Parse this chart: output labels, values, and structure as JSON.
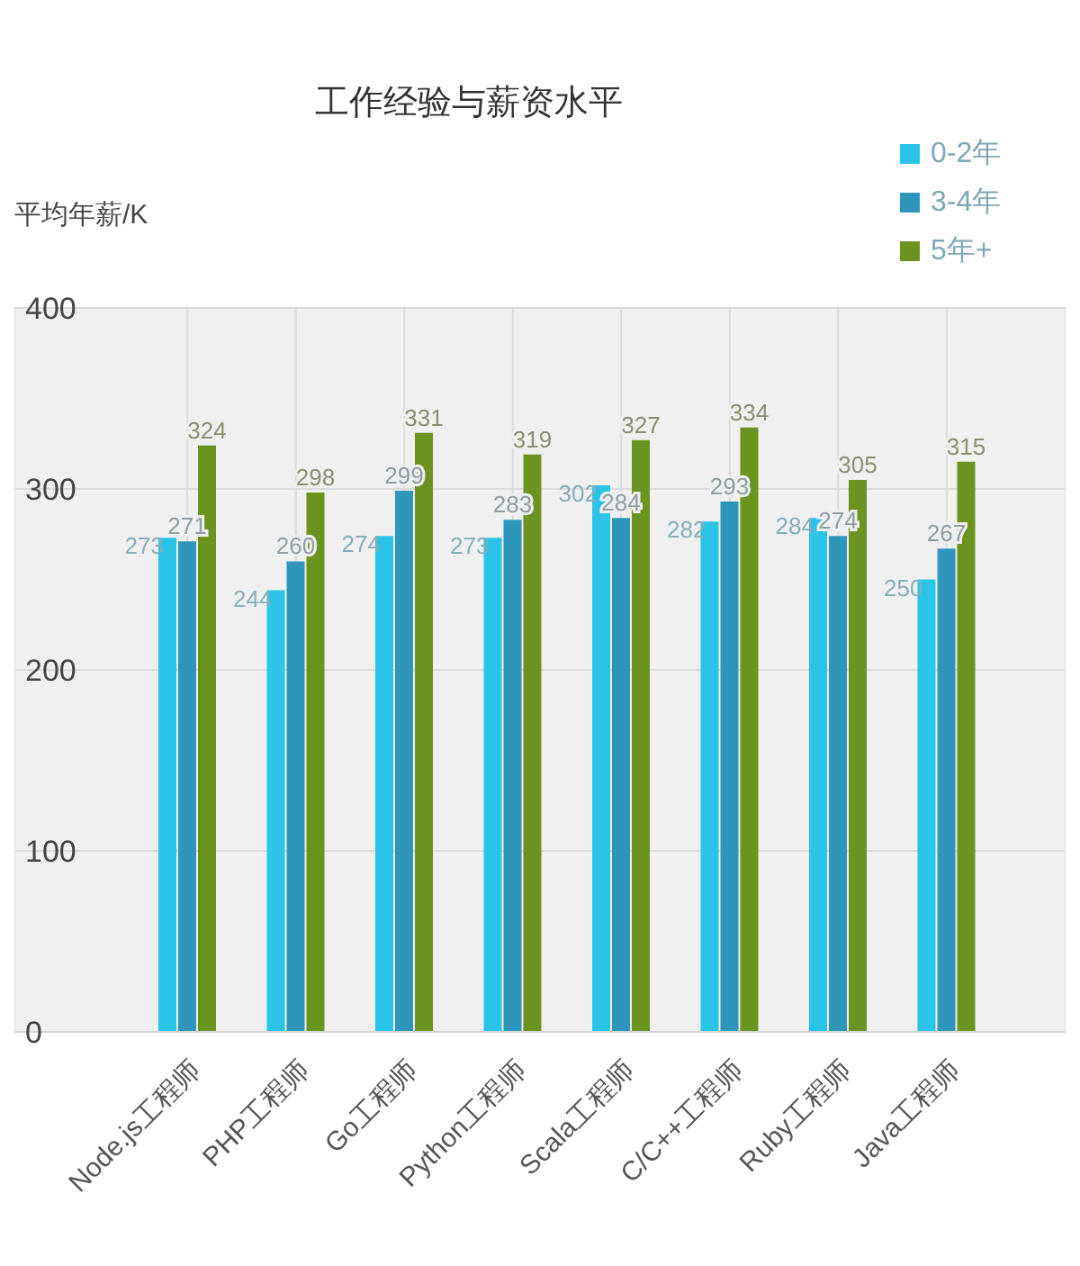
{
  "chart_data": {
    "type": "bar",
    "title": "工作经验与薪资水平",
    "ylabel": "平均年薪/K",
    "categories": [
      "Node.js工程师",
      "PHP工程师",
      "Go工程师",
      "Python工程师",
      "Scala工程师",
      "C/C++工程师",
      "Ruby工程师",
      "Java工程师"
    ],
    "series": [
      {
        "name": "0-2年",
        "color": "#2bc4e9",
        "values": [
          273,
          244,
          274,
          273,
          302,
          282,
          284,
          250
        ]
      },
      {
        "name": "3-4年",
        "color": "#2f96bb",
        "values": [
          271,
          260,
          299,
          283,
          284,
          293,
          274,
          267
        ]
      },
      {
        "name": "5年+",
        "color": "#6a931f",
        "values": [
          324,
          298,
          331,
          319,
          327,
          334,
          305,
          315
        ]
      }
    ],
    "ylim": [
      0,
      400
    ],
    "yticks": [
      0,
      100,
      200,
      300,
      400
    ],
    "grid": true,
    "legend": "top right",
    "data_labels": true
  }
}
